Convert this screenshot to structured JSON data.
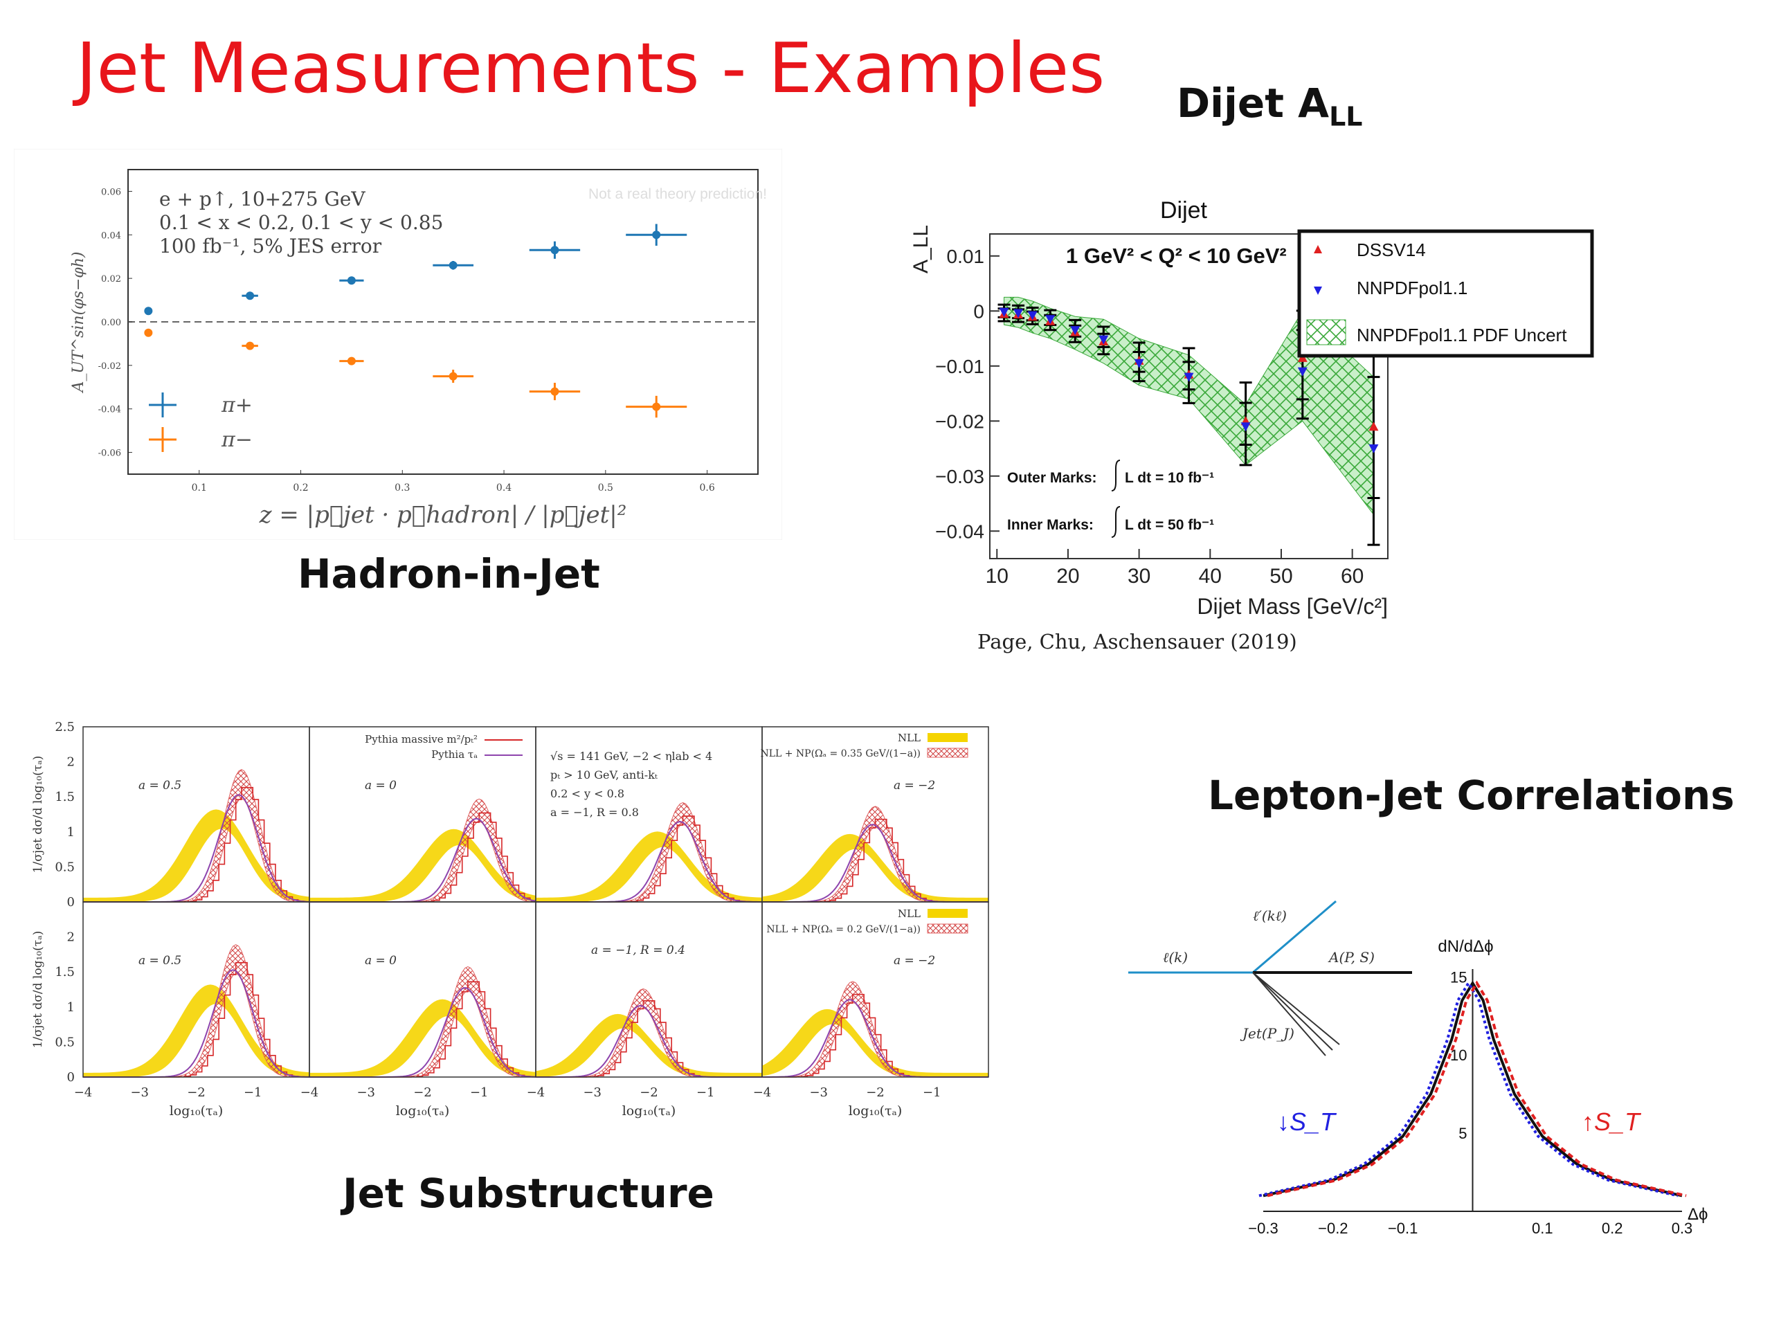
{
  "slide": {
    "title": "Jet Measurements - Examples",
    "dijet_heading_main": "Dijet A",
    "dijet_heading_sub": "LL",
    "hadron_caption": "Hadron-in-Jet",
    "substructure_caption": "Jet Substructure",
    "lepton_caption": "Lepton-Jet Correlations",
    "citation": "Page, Chu, Aschensauer (2019)"
  },
  "colors": {
    "title": "#e8151b",
    "pi_plus": "#1f77b4",
    "pi_minus": "#ff7f0e",
    "nll_band": "#f5d400",
    "np_band": "#e88a8a",
    "pythia_massive": "#d62728",
    "pythia_tau": "#8e44ad",
    "nnpdf": "#2020e0",
    "dssv": "#e02020",
    "uncert": "#44c044"
  },
  "chart_data": [
    {
      "id": "hadron-in-jet",
      "type": "scatter",
      "annotation_lines": [
        "e + p↑, 10+275 GeV",
        "0.1 < x < 0.2, 0.1 < y < 0.85",
        "100 fb⁻¹, 5% JES error"
      ],
      "watermark": "Not a real theory prediction!",
      "xlabel": "z = |p⃗jet · p⃗hadron| / |p⃗jet|²",
      "ylabel": "A_UT^sin(φs−φh)",
      "xlim": [
        0.03,
        0.65
      ],
      "ylim": [
        -0.07,
        0.07
      ],
      "xticks": [
        "0.1",
        "0.2",
        "0.3",
        "0.4",
        "0.5",
        "0.6"
      ],
      "yticks": [
        "0.06",
        "0.04",
        "0.02",
        "0.00",
        "-0.02",
        "-0.04",
        "-0.06"
      ],
      "grid": false,
      "legend": "bottom-left",
      "legend_labels": [
        "π+",
        "π−"
      ],
      "series": [
        {
          "name": "π+",
          "x": [
            0.05,
            0.15,
            0.25,
            0.35,
            0.45,
            0.55
          ],
          "y": [
            0.005,
            0.012,
            0.019,
            0.026,
            0.033,
            0.04
          ],
          "xerr": [
            0.0,
            0.008,
            0.012,
            0.02,
            0.025,
            0.03
          ],
          "yerr": [
            0.0,
            0.001,
            0.001,
            0.002,
            0.004,
            0.005
          ]
        },
        {
          "name": "π−",
          "x": [
            0.05,
            0.15,
            0.25,
            0.35,
            0.45,
            0.55
          ],
          "y": [
            -0.005,
            -0.011,
            -0.018,
            -0.025,
            -0.032,
            -0.039
          ],
          "xerr": [
            0.0,
            0.008,
            0.012,
            0.02,
            0.025,
            0.03
          ],
          "yerr": [
            0.0,
            0.001,
            0.001,
            0.003,
            0.004,
            0.005
          ]
        }
      ]
    },
    {
      "id": "dijet-all",
      "type": "scatter",
      "title": "Dijet",
      "annotation": "1 GeV² < Q² < 10 GeV²",
      "xlabel": "Dijet Mass [GeV/c²]",
      "ylabel": "A_LL",
      "xlim": [
        9,
        65
      ],
      "ylim": [
        -0.045,
        0.014
      ],
      "xticks": [
        "10",
        "20",
        "30",
        "40",
        "50",
        "60"
      ],
      "yticks": [
        "0.01",
        "0",
        "−0.01",
        "−0.02",
        "−0.03",
        "−0.04"
      ],
      "legend": "top-right",
      "legend_labels": [
        "DSSV14",
        "NNPDFpol1.1",
        "NNPDFpol1.1 PDF Uncert"
      ],
      "marks_text": [
        "Outer Marks:",
        "L dt = 10 fb⁻¹",
        "Inner Marks:",
        "L dt = 50 fb⁻¹"
      ],
      "x": [
        11,
        13,
        15,
        17.5,
        21,
        25,
        30,
        37,
        45,
        53,
        63
      ],
      "dssv": [
        -0.0005,
        -0.0006,
        -0.001,
        -0.0018,
        -0.0038,
        -0.0055,
        -0.009,
        -0.0115,
        -0.02,
        -0.0085,
        -0.021
      ],
      "nnpdf": [
        -0.0002,
        -0.0004,
        -0.0008,
        -0.0015,
        -0.0035,
        -0.0052,
        -0.0095,
        -0.012,
        -0.021,
        -0.011,
        -0.025
      ],
      "outer_err": [
        0.0015,
        0.0015,
        0.0015,
        0.0018,
        0.002,
        0.0025,
        0.0035,
        0.005,
        0.0075,
        0.0098,
        0.0195
      ],
      "inner_err": [
        0.0008,
        0.0008,
        0.0008,
        0.0009,
        0.001,
        0.0012,
        0.0018,
        0.0025,
        0.0038,
        0.0063,
        0.011
      ],
      "band_upper": [
        0.0025,
        0.0025,
        0.0018,
        0.0005,
        -0.001,
        -0.0015,
        -0.005,
        -0.008,
        -0.017,
        -0.0,
        -0.012
      ],
      "band_lower": [
        -0.0025,
        -0.003,
        -0.004,
        -0.005,
        -0.007,
        -0.0095,
        -0.0135,
        -0.016,
        -0.028,
        -0.02,
        -0.037
      ]
    },
    {
      "id": "jet-substructure",
      "type": "area",
      "panel_labels": [
        "a = 0.5",
        "a = 0",
        "",
        "a = −2",
        "a = 0.5",
        "a = 0",
        "a = −1, R = 0.4",
        "a = −2"
      ],
      "legend_text": [
        "Pythia massive m²/pₜ²",
        "Pythia τₐ",
        "NLL",
        "NLL + NP(Ωₐ = 0.35 GeV/(1−a))",
        "NLL",
        "NLL + NP(Ωₐ = 0.2 GeV/(1−a))"
      ],
      "info_lines": [
        "√s = 141 GeV, −2 < ηlab < 4",
        "pₜ > 10 GeV, anti-kₜ",
        "0.2 < y < 0.8",
        "a = −1, R = 0.8"
      ],
      "xlabel": "log₁₀(τₐ)",
      "ylabel": "1/σjet dσ/d log₁₀(τₐ)",
      "xlim": [
        -4,
        0
      ],
      "ylim": [
        0,
        2.5
      ],
      "xticks": [
        "−4",
        "−3",
        "−2",
        "−1"
      ],
      "yticks": [
        "2.5",
        "2",
        "1.5",
        "1",
        "0.5",
        "0"
      ],
      "peaks": [
        [
          -1.2,
          1.8
        ],
        [
          -1.0,
          1.4
        ],
        [
          -1.4,
          1.35
        ],
        [
          -2.0,
          1.3
        ],
        [
          -1.3,
          1.8
        ],
        [
          -1.2,
          1.5
        ],
        [
          -2.1,
          1.2
        ],
        [
          -2.4,
          1.3
        ]
      ]
    },
    {
      "id": "lepton-jet",
      "type": "line",
      "ylabel": "dN/dΔϕ",
      "xlabel": "Δϕ",
      "xlim": [
        -0.3,
        0.3
      ],
      "ylim": [
        0,
        15.5
      ],
      "xticks": [
        "−0.3",
        "−0.2",
        "−0.1",
        "0.1",
        "0.2",
        "0.3"
      ],
      "yticks": [
        "15",
        "10",
        "5"
      ],
      "series_labels": [
        "↓S_T",
        "↑S_T"
      ],
      "diagram_labels": [
        "ℓ(k)",
        "ℓ′(kℓ)",
        "A(P, S)",
        "Jet(P_J)"
      ],
      "x": [
        -0.3,
        -0.2,
        -0.15,
        -0.1,
        -0.06,
        -0.03,
        -0.015,
        0,
        0.015,
        0.03,
        0.06,
        0.1,
        0.15,
        0.2,
        0.3
      ],
      "y": [
        1.0,
        2.0,
        3.0,
        4.8,
        7.5,
        11.0,
        13.5,
        14.6,
        13.5,
        11.0,
        7.5,
        4.8,
        3.0,
        2.0,
        1.0
      ]
    }
  ]
}
